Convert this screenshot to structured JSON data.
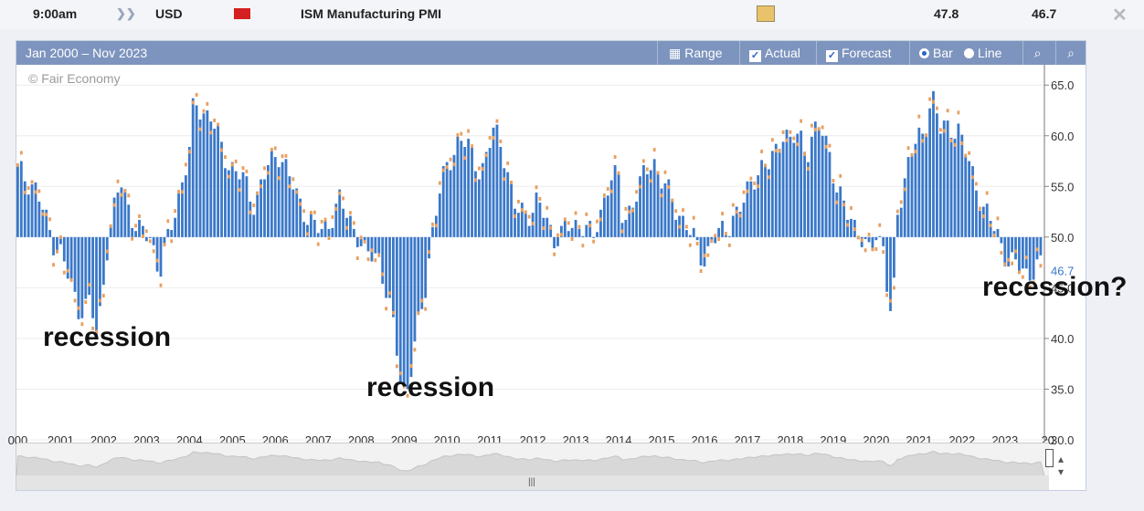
{
  "top_row": {
    "time": "9:00am",
    "currency": "USD",
    "event": "ISM Manufacturing PMI",
    "actual": "47.8",
    "forecast": "46.7"
  },
  "chart_header": {
    "range_text": "Jan 2000 – Nov 2023",
    "range_btn": "Range",
    "actual_lbl": "Actual",
    "forecast_lbl": "Forecast",
    "bar_lbl": "Bar",
    "line_lbl": "Line"
  },
  "watermark": "© Fair Economy",
  "annotations": [
    "recession",
    "recession",
    "recession?"
  ],
  "colors": {
    "bar": "#3a78c9",
    "forecast": "#e8a060",
    "header": "#7d94be"
  },
  "chart_data": {
    "type": "bar",
    "baseline": 50,
    "ylim": [
      30,
      67
    ],
    "yticks": [
      "30.0",
      "35.0",
      "40.0",
      "45.0",
      "50.0",
      "55.0",
      "60.0",
      "65.0"
    ],
    "xticks": [
      "000",
      "2001",
      "2002",
      "2003",
      "2004",
      "2005",
      "2006",
      "2007",
      "2008",
      "2009",
      "2010",
      "2011",
      "2012",
      "2013",
      "2014",
      "2015",
      "2016",
      "2017",
      "2018",
      "2019",
      "2020",
      "2021",
      "2022",
      "2023",
      "20"
    ],
    "last_value_label": "46.7",
    "annual_avg": [
      {
        "x": "2000",
        "y": 53.5
      },
      {
        "x": "2001",
        "y": 44.2
      },
      {
        "x": "2002",
        "y": 51.8
      },
      {
        "x": "2003",
        "y": 52.2
      },
      {
        "x": "2004",
        "y": 60.2
      },
      {
        "x": "2005",
        "y": 55.2
      },
      {
        "x": "2006",
        "y": 54.0
      },
      {
        "x": "2007",
        "y": 51.5
      },
      {
        "x": "2008",
        "y": 45.7
      },
      {
        "x": "2009",
        "y": 46.2
      },
      {
        "x": "2010",
        "y": 57.3
      },
      {
        "x": "2011",
        "y": 55.2
      },
      {
        "x": "2012",
        "y": 51.7
      },
      {
        "x": "2013",
        "y": 53.8
      },
      {
        "x": "2014",
        "y": 55.6
      },
      {
        "x": "2015",
        "y": 51.3
      },
      {
        "x": "2016",
        "y": 51.5
      },
      {
        "x": "2017",
        "y": 57.4
      },
      {
        "x": "2018",
        "y": 58.8
      },
      {
        "x": "2019",
        "y": 51.2
      },
      {
        "x": "2020",
        "y": 52.5
      },
      {
        "x": "2021",
        "y": 60.6
      },
      {
        "x": "2022",
        "y": 53.5
      },
      {
        "x": "2023",
        "y": 47.1
      }
    ],
    "knots": [
      [
        2000.0,
        56.5
      ],
      [
        2000.4,
        55
      ],
      [
        2000.8,
        49.8
      ],
      [
        2001.0,
        48.5
      ],
      [
        2001.4,
        43
      ],
      [
        2001.7,
        43.5
      ],
      [
        2001.85,
        39.8
      ],
      [
        2002.1,
        49.8
      ],
      [
        2002.4,
        55.5
      ],
      [
        2002.8,
        50.5
      ],
      [
        2003.1,
        50
      ],
      [
        2003.3,
        46.5
      ],
      [
        2003.5,
        49.5
      ],
      [
        2003.8,
        55
      ],
      [
        2004.0,
        58.5
      ],
      [
        2004.1,
        63
      ],
      [
        2004.5,
        62
      ],
      [
        2004.8,
        58
      ],
      [
        2005.2,
        56
      ],
      [
        2005.5,
        53.5
      ],
      [
        2005.9,
        57.5
      ],
      [
        2006.1,
        58.5
      ],
      [
        2006.5,
        54
      ],
      [
        2006.9,
        51
      ],
      [
        2007.1,
        50.5
      ],
      [
        2007.5,
        53.5
      ],
      [
        2007.9,
        50.5
      ],
      [
        2008.1,
        48
      ],
      [
        2008.4,
        48.5
      ],
      [
        2008.8,
        40
      ],
      [
        2008.95,
        35
      ],
      [
        2009.1,
        35.5
      ],
      [
        2009.5,
        45
      ],
      [
        2009.7,
        52
      ],
      [
        2010.0,
        57
      ],
      [
        2010.3,
        60
      ],
      [
        2010.8,
        56.5
      ],
      [
        2011.1,
        60.5
      ],
      [
        2011.3,
        59
      ],
      [
        2011.6,
        52.5
      ],
      [
        2011.9,
        52.5
      ],
      [
        2012.1,
        53.5
      ],
      [
        2012.5,
        50
      ],
      [
        2012.9,
        51
      ],
      [
        2013.2,
        51.5
      ],
      [
        2013.4,
        49.5
      ],
      [
        2013.8,
        56
      ],
      [
        2014.0,
        55.5
      ],
      [
        2014.1,
        51.5
      ],
      [
        2014.5,
        55
      ],
      [
        2014.8,
        58
      ],
      [
        2015.0,
        55.5
      ],
      [
        2015.4,
        52.5
      ],
      [
        2015.9,
        48.5
      ],
      [
        2016.0,
        48
      ],
      [
        2016.2,
        49.5
      ],
      [
        2016.6,
        51.5
      ],
      [
        2016.9,
        53
      ],
      [
        2017.1,
        56
      ],
      [
        2017.5,
        57
      ],
      [
        2017.8,
        60.5
      ],
      [
        2018.0,
        59
      ],
      [
        2018.2,
        60.5
      ],
      [
        2018.4,
        58.5
      ],
      [
        2018.7,
        61
      ],
      [
        2018.9,
        59
      ],
      [
        2019.1,
        54
      ],
      [
        2019.5,
        51.5
      ],
      [
        2019.8,
        48
      ],
      [
        2020.0,
        50.5
      ],
      [
        2020.2,
        49
      ],
      [
        2020.3,
        41.5
      ],
      [
        2020.4,
        43
      ],
      [
        2020.5,
        52.5
      ],
      [
        2020.8,
        58.5
      ],
      [
        2021.1,
        60
      ],
      [
        2021.3,
        64.5
      ],
      [
        2021.5,
        60.5
      ],
      [
        2021.9,
        61
      ],
      [
        2022.1,
        58
      ],
      [
        2022.5,
        53
      ],
      [
        2022.9,
        49.5
      ],
      [
        2023.1,
        47.5
      ],
      [
        2023.5,
        46.5
      ],
      [
        2023.8,
        47
      ]
    ]
  }
}
